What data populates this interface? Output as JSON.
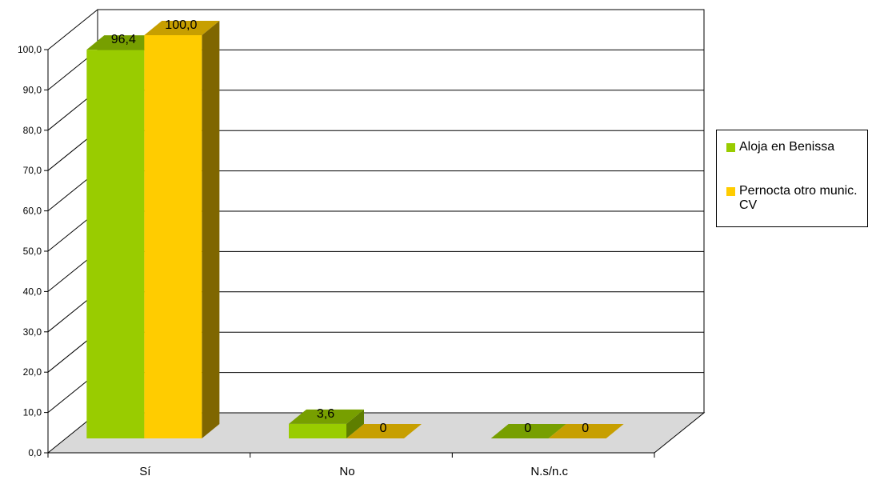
{
  "chart_data": {
    "type": "bar",
    "categories": [
      "Sí",
      "No",
      "N.s/n.c"
    ],
    "series": [
      {
        "name": "Aloja en Benissa",
        "values": [
          96.4,
          3.6,
          0
        ],
        "labels": [
          "96,4",
          "3,6",
          "0"
        ]
      },
      {
        "name": "Pernocta otro munic. CV",
        "values": [
          100.0,
          0,
          0
        ],
        "labels": [
          "100,0",
          "0",
          "0"
        ]
      }
    ],
    "yticks": [
      "0,0",
      "10,0",
      "20,0",
      "30,0",
      "40,0",
      "50,0",
      "60,0",
      "70,0",
      "80,0",
      "90,0",
      "100,0"
    ],
    "ylim": [
      0,
      100
    ],
    "grid": true,
    "style": "3d",
    "legend_position": "right",
    "colors": {
      "series": [
        "#99CC00",
        "#FFCC00"
      ],
      "series_top": [
        "#779F00",
        "#C79F00"
      ],
      "series_side": [
        "#5E7E00",
        "#7F6600"
      ],
      "floor": "#D9D9D9"
    }
  }
}
